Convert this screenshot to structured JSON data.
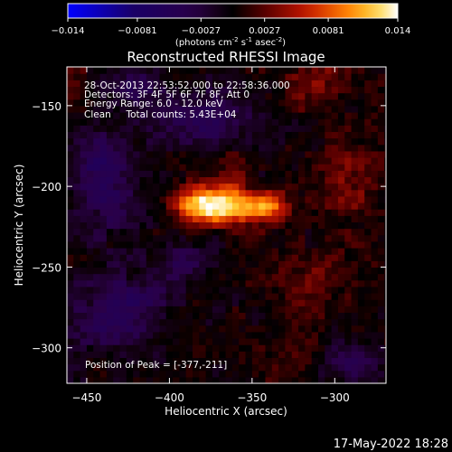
{
  "colorbar": {
    "ticks": [
      "-0.014",
      "-0.0081",
      "-0.0027",
      "0.0027",
      "0.0081",
      "0.014"
    ],
    "unit_label_parts": [
      "(photons cm",
      "-2",
      " s",
      "-1",
      " asec",
      "-2",
      ")"
    ],
    "colors": [
      "#0000ff",
      "#1a0066",
      "#2a0048",
      "#0e0008",
      "#000000",
      "#5a0000",
      "#c01500",
      "#ff7a00",
      "#ffd23a",
      "#ffffff"
    ]
  },
  "chart_data": {
    "type": "heatmap",
    "title": "Reconstructed RHESSI Image",
    "xlabel": "Heliocentric X (arcsec)",
    "ylabel": "Heliocentric Y (arcsec)",
    "xlim": [
      -462,
      -269
    ],
    "ylim": [
      -322,
      -126
    ],
    "xticks": [
      -450,
      -400,
      -350,
      -300
    ],
    "yticks": [
      -300,
      -250,
      -200,
      -150
    ],
    "xtick_labels": [
      "−450",
      "−400",
      "−350",
      "−300"
    ],
    "ytick_labels": [
      "−300",
      "−250",
      "−200",
      "−150"
    ],
    "value_range": [
      -0.014,
      0.014
    ],
    "annotations": [
      "28-Oct-2013 22:53:52.000 to 22:58:36.000",
      "Detectors: 3F 4F 5F 6F 7F 8F, Att 0",
      "Energy Range: 6.0 - 12.0 keV",
      "Clean     Total counts: 5.43E+04"
    ],
    "peak_label": "Position of Peak = [-377,-211]",
    "peak": {
      "x": -377,
      "y": -211
    },
    "sources": [
      {
        "x": -378,
        "y": -211,
        "value": 0.014,
        "sx": 13,
        "sy": 8
      },
      {
        "x": -345,
        "y": -213,
        "value": 0.0105,
        "sx": 12,
        "sy": 7
      },
      {
        "x": -362,
        "y": -200,
        "value": 0.003,
        "sx": 7,
        "sy": 14
      },
      {
        "x": -312,
        "y": -136,
        "value": 0.0035,
        "sx": 14,
        "sy": 12
      },
      {
        "x": -292,
        "y": -195,
        "value": 0.003,
        "sx": 12,
        "sy": 22
      },
      {
        "x": -310,
        "y": -262,
        "value": 0.0025,
        "sx": 18,
        "sy": 14
      },
      {
        "x": -458,
        "y": -140,
        "value": 0.0022,
        "sx": 8,
        "sy": 12
      },
      {
        "x": -330,
        "y": -305,
        "value": 0.0018,
        "sx": 14,
        "sy": 8
      },
      {
        "x": -440,
        "y": -195,
        "value": -0.0055,
        "sx": 15,
        "sy": 22
      },
      {
        "x": -430,
        "y": -278,
        "value": -0.005,
        "sx": 20,
        "sy": 16
      },
      {
        "x": -380,
        "y": -158,
        "value": -0.0042,
        "sx": 22,
        "sy": 12
      },
      {
        "x": -290,
        "y": -310,
        "value": -0.0045,
        "sx": 12,
        "sy": 10
      },
      {
        "x": -390,
        "y": -248,
        "value": -0.003,
        "sx": 14,
        "sy": 10
      },
      {
        "x": -420,
        "y": -140,
        "value": -0.0035,
        "sx": 14,
        "sy": 10
      }
    ]
  },
  "timestamp": "17-May-2022 18:28"
}
